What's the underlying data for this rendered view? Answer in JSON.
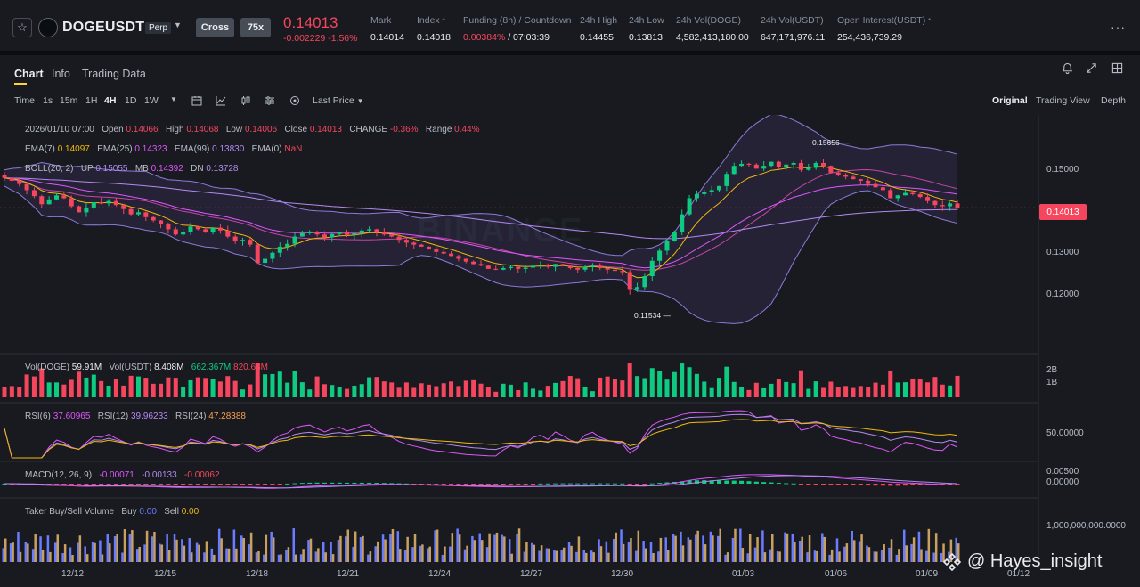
{
  "header": {
    "symbol": "DOGEUSDT",
    "contract_type": "Perp",
    "margin_mode": "Cross",
    "leverage": "75x",
    "last_price": "0.14013",
    "change": "-0.002229 -1.56%",
    "stats": [
      {
        "label": "Mark",
        "value": "0.14014"
      },
      {
        "label": "Index",
        "value": "0.14018"
      },
      {
        "label": "Funding (8h) / Countdown",
        "value": "0.00384%",
        "value2": " / 07:03:39"
      },
      {
        "label": "24h High",
        "value": "0.14455"
      },
      {
        "label": "24h Low",
        "value": "0.13813"
      },
      {
        "label": "24h Vol(DOGE)",
        "value": "4,582,413,180.00"
      },
      {
        "label": "24h Vol(USDT)",
        "value": "647,171,976.11"
      },
      {
        "label": "Open Interest(USDT)",
        "value": "254,436,739.29"
      }
    ]
  },
  "tabs": [
    "Chart",
    "Info",
    "Trading Data"
  ],
  "toolbar": {
    "time_label": "Time",
    "intervals": [
      "1s",
      "15m",
      "1H",
      "4H",
      "1D",
      "1W"
    ],
    "active_interval": "4H",
    "price_source": "Last Price",
    "views": [
      "Original",
      "Trading View",
      "Depth"
    ]
  },
  "ohlc": {
    "date": "2026/01/10 07:00",
    "open_label": "Open",
    "open": "0.14066",
    "high_label": "High",
    "high": "0.14068",
    "low_label": "Low",
    "low": "0.14006",
    "close_label": "Close",
    "close": "0.14013",
    "change_label": "CHANGE",
    "change": "-0.36%",
    "range_label": "Range",
    "range": "0.44%"
  },
  "ema": {
    "ema7_label": "EMA(7)",
    "ema7": "0.14097",
    "ema25_label": "EMA(25)",
    "ema25": "0.14323",
    "ema99_label": "EMA(99)",
    "ema99": "0.13830",
    "ema0_label": "EMA(0)",
    "ema0": "NaN"
  },
  "boll": {
    "label": "BOLL(20, 2)",
    "up_label": "UP",
    "up": "0.15055",
    "mb_label": "MB",
    "mb": "0.14392",
    "dn_label": "DN",
    "dn": "0.13728"
  },
  "price_axis": [
    "0.15000",
    "0.14013",
    "0.13000",
    "0.12000"
  ],
  "markers": {
    "high": "0.15656",
    "low": "0.11534"
  },
  "volume": {
    "doge_label": "Vol(DOGE)",
    "doge": "59.91M",
    "usdt_label": "Vol(USDT)",
    "usdt": "8.408M",
    "ma1": "662.367M",
    "ma2": "820.68M",
    "axis": [
      "2B",
      "1B"
    ]
  },
  "rsi": {
    "rsi6_label": "RSI(6)",
    "rsi6": "37.60965",
    "rsi12_label": "RSI(12)",
    "rsi12": "39.96233",
    "rsi24_label": "RSI(24)",
    "rsi24": "47.28388",
    "axis": "50.00000"
  },
  "macd": {
    "label": "MACD(12, 26, 9)",
    "v1": "-0.00071",
    "v2": "-0.00133",
    "v3": "-0.00062",
    "axis": [
      "0.00500",
      "0.00000"
    ]
  },
  "taker": {
    "label": "Taker Buy/Sell Volume",
    "buy_label": "Buy",
    "buy": "0.00",
    "sell_label": "Sell",
    "sell": "0.00",
    "axis": "1,000,000,000.0000"
  },
  "x_axis": [
    "12/12",
    "12/15",
    "12/18",
    "12/21",
    "12/24",
    "12/27",
    "12/30",
    "01/03",
    "01/06",
    "01/09",
    "01/12"
  ],
  "watermark": "@ Hayes_insight",
  "chart_watermark": "BINANCE",
  "colors": {
    "up": "#0ecb81",
    "down": "#f6465d",
    "accent": "#fcd535",
    "bg": "#181a20"
  },
  "chart_data": {
    "type": "candlestick",
    "interval": "4H",
    "closes": [
      0.1475,
      0.1468,
      0.146,
      0.1445,
      0.143,
      0.141,
      0.1422,
      0.1432,
      0.1425,
      0.1405,
      0.139,
      0.1402,
      0.1415,
      0.1412,
      0.1418,
      0.1408,
      0.1398,
      0.1385,
      0.139,
      0.1378,
      0.137,
      0.1362,
      0.1348,
      0.1335,
      0.1342,
      0.1355,
      0.1348,
      0.134,
      0.1352,
      0.1345,
      0.133,
      0.1318,
      0.1322,
      0.131,
      0.1265,
      0.1275,
      0.129,
      0.1305,
      0.1312,
      0.133,
      0.1338,
      0.1342,
      0.1335,
      0.1328,
      0.1336,
      0.134,
      0.1334,
      0.1338,
      0.1345,
      0.1348,
      0.134,
      0.1335,
      0.133,
      0.1322,
      0.1315,
      0.131,
      0.1305,
      0.1298,
      0.1292,
      0.1288,
      0.1282,
      0.1275,
      0.1268,
      0.1262,
      0.1258,
      0.125,
      0.1248,
      0.1252,
      0.1255,
      0.125,
      0.1253,
      0.1258,
      0.126,
      0.1255,
      0.1262,
      0.1258,
      0.1252,
      0.1248,
      0.1255,
      0.1258,
      0.1252,
      0.1248,
      0.1245,
      0.1242,
      0.1198,
      0.1205,
      0.1232,
      0.127,
      0.1295,
      0.1318,
      0.134,
      0.1385,
      0.1425,
      0.1435,
      0.144,
      0.1445,
      0.1455,
      0.1485,
      0.1505,
      0.151,
      0.1508,
      0.1498,
      0.1505,
      0.1515,
      0.1502,
      0.1508,
      0.1512,
      0.1495,
      0.15,
      0.1512,
      0.1505,
      0.1488,
      0.1482,
      0.1478,
      0.1472,
      0.1468,
      0.146,
      0.1452,
      0.1445,
      0.1425,
      0.1432,
      0.1438,
      0.1435,
      0.1428,
      0.1418,
      0.1408,
      0.1405,
      0.1412,
      0.1401
    ],
    "high": 0.15656,
    "low": 0.11534,
    "last": 0.14013
  }
}
